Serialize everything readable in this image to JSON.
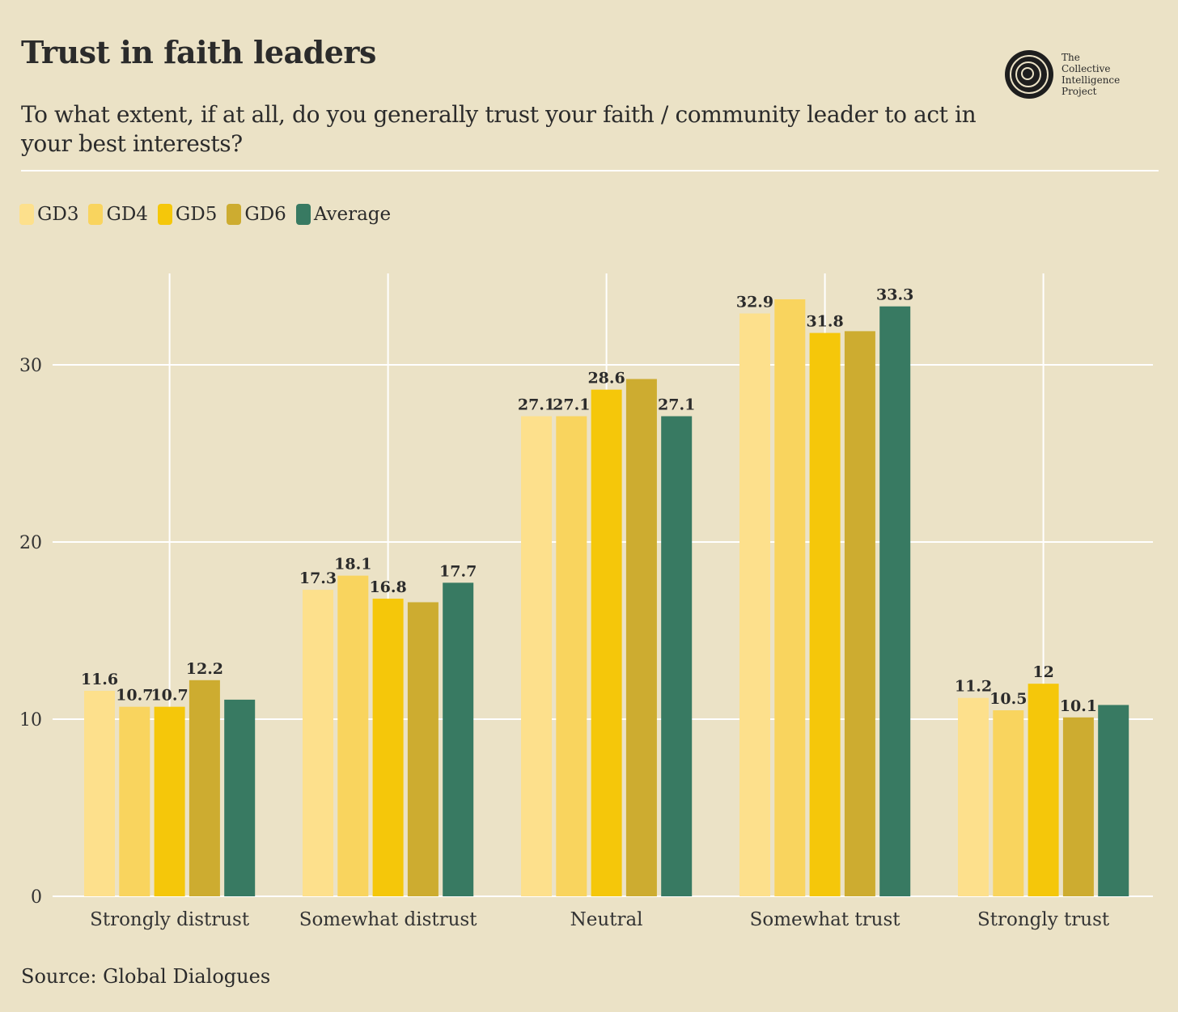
{
  "header": {
    "title": "Trust in faith leaders",
    "subtitle": "To what extent, if at all, do you generally trust your faith / community leader to act in your best interests?"
  },
  "logo": {
    "text": [
      "The",
      "Collective",
      "Intelligence",
      "Project"
    ]
  },
  "source": "Source: Global Dialogues",
  "chart_data": {
    "type": "bar",
    "title": "Trust in faith leaders",
    "xlabel": "",
    "ylabel": "",
    "ylim": [
      0,
      35
    ],
    "yticks": [
      0,
      10,
      20,
      30
    ],
    "grid": true,
    "legend_position": "top-left",
    "categories": [
      "Strongly distrust",
      "Somewhat distrust",
      "Neutral",
      "Somewhat trust",
      "Strongly trust"
    ],
    "series": [
      {
        "name": "GD3",
        "color": "#fde08c",
        "values": [
          11.6,
          17.3,
          27.1,
          32.9,
          11.2
        ],
        "labels": [
          "11.6",
          "17.3",
          "27.1",
          "32.9",
          "11.2"
        ]
      },
      {
        "name": "GD4",
        "color": "#f9d45e",
        "values": [
          10.7,
          18.1,
          27.1,
          33.7,
          10.5
        ],
        "labels": [
          "10.7",
          "18.1",
          "27.1",
          null,
          "10.5"
        ]
      },
      {
        "name": "GD5",
        "color": "#f5c70a",
        "values": [
          10.7,
          16.8,
          28.6,
          31.8,
          12
        ],
        "labels": [
          "10.7",
          "16.8",
          "28.6",
          "31.8",
          "12"
        ]
      },
      {
        "name": "GD6",
        "color": "#cdac30",
        "values": [
          12.2,
          16.6,
          29.2,
          31.9,
          10.1
        ],
        "labels": [
          "12.2",
          null,
          null,
          null,
          "10.1"
        ]
      },
      {
        "name": "Average",
        "color": "#387a62",
        "values": [
          11.1,
          17.7,
          27.1,
          33.3,
          10.8
        ],
        "labels": [
          null,
          "17.7",
          "27.1",
          "33.3",
          null
        ]
      }
    ]
  }
}
